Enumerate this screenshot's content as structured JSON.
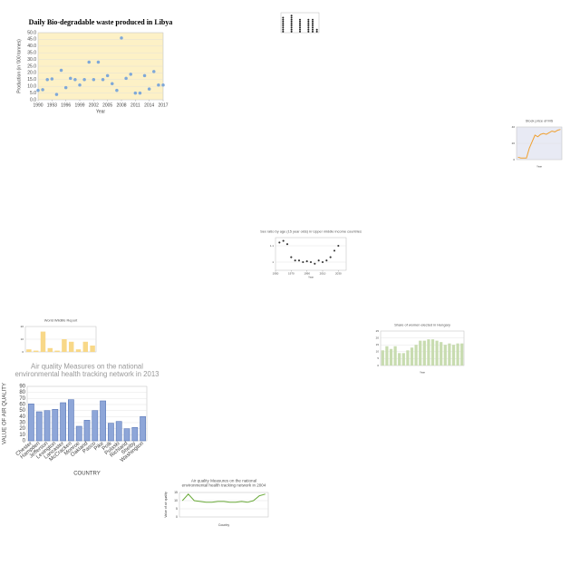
{
  "chart_data": [
    {
      "type": "scatter",
      "title": "Daily Bio-degradable waste produced in Libya",
      "x_label": "Year",
      "y_label": "Production (in '000 tonnes)",
      "x": [
        1990,
        1991,
        1992,
        1993,
        1994,
        1995,
        1996,
        1997,
        1998,
        1999,
        2000,
        2001,
        2002,
        2003,
        2004,
        2005,
        2006,
        2007,
        2008,
        2009,
        2010,
        2011,
        2012,
        2013,
        2014,
        2015,
        2016,
        2017
      ],
      "values": [
        7,
        7.5,
        15,
        15.5,
        4,
        22,
        9,
        16,
        15,
        11,
        15,
        28,
        15,
        28,
        15,
        18,
        12,
        7,
        46,
        16,
        19,
        5,
        5,
        18,
        8,
        21,
        11,
        11
      ],
      "color": "#7fa8d8",
      "background": "#fdf1c6",
      "xlim": [
        1990,
        2017
      ],
      "xticks": [
        1990,
        1993,
        1996,
        1999,
        2002,
        2005,
        2008,
        2011,
        2014,
        2017
      ],
      "ylim": [
        0,
        50
      ],
      "yticks": [
        {
          "value": 0,
          "label": "0.0"
        },
        {
          "value": 5,
          "label": "5.0"
        },
        {
          "value": 10,
          "label": "10.0"
        },
        {
          "value": 15,
          "label": "15.0"
        },
        {
          "value": 20,
          "label": "20.0"
        },
        {
          "value": 25,
          "label": "25.0"
        },
        {
          "value": 30,
          "label": "30.0"
        },
        {
          "value": 35,
          "label": "35.0"
        },
        {
          "value": 40,
          "label": "40.0"
        },
        {
          "value": 45,
          "label": "45.0"
        },
        {
          "value": 50,
          "label": "50.0"
        }
      ],
      "grid": true
    },
    {
      "type": "dot",
      "values": [
        8,
        0,
        9,
        0,
        7,
        0,
        7,
        7,
        2
      ],
      "color": "#222222",
      "ylim": [
        0,
        10
      ],
      "yticks": [],
      "grid": true
    },
    {
      "type": "line",
      "title": "Stock price of MS",
      "x_label": "Year",
      "values": [
        3,
        2,
        2,
        2,
        14,
        22,
        30,
        28,
        31,
        32,
        31,
        33,
        35,
        34,
        36,
        37
      ],
      "color": "#f0a030",
      "background": "#e8eaf4",
      "ylim": [
        0,
        40
      ],
      "yticks": [
        0,
        20,
        40
      ],
      "grid": true
    },
    {
      "type": "scatter",
      "title": "Sex ratio by age (15 year olds) in Upper middle income countries",
      "x_label": "Year",
      "x": [
        1955,
        1960,
        1965,
        1970,
        1975,
        1980,
        1985,
        1990,
        1995,
        2000,
        2005,
        2010,
        2015,
        2020,
        2025,
        2030
      ],
      "values": [
        1.12,
        1.13,
        1.11,
        1.03,
        1.01,
        1.01,
        1.0,
        1.005,
        1.0,
        0.99,
        1.01,
        1.0,
        1.01,
        1.03,
        1.07,
        1.1
      ],
      "color": "#333333",
      "xlim": [
        1950,
        2040
      ],
      "xticks": [
        1950,
        1970,
        1990,
        2010,
        2030
      ],
      "ylim": [
        0.95,
        1.15
      ],
      "yticks": [
        1,
        1.1
      ],
      "grid": true
    },
    {
      "type": "bar",
      "title": "World Wildlife Report",
      "values": [
        2,
        1,
        16,
        3,
        1,
        10,
        8,
        2,
        8,
        5
      ],
      "color": "#f8d888",
      "ylim": [
        0,
        20
      ],
      "yticks": [
        0,
        10,
        20
      ],
      "grid": true
    },
    {
      "type": "bar",
      "title": "Share of women elected in Hungary",
      "x_label": "Year",
      "values": [
        11,
        14,
        12,
        14,
        9,
        9,
        11,
        13,
        15,
        18,
        18,
        19,
        19,
        18,
        17,
        15,
        16,
        15,
        16,
        16
      ],
      "color": "#c8dcb0",
      "ylim": [
        0,
        25
      ],
      "yticks": [
        0,
        5,
        10,
        15,
        20,
        25
      ],
      "grid": true
    },
    {
      "type": "bar",
      "title": "Air quality Measures on the national environmental health tracking network in 2013",
      "x_label": "COUNTRY",
      "y_label": "VALUE OF AIR QUALITY",
      "categories": [
        "Chester",
        "Hampden",
        "Jefferson",
        "Lexington",
        "Lancaster",
        "McCracken",
        "Monroe",
        "Oakland",
        "Pasco",
        "Pike",
        "Polk",
        "Pulaski",
        "Richland",
        "Shelby",
        "Washington"
      ],
      "values": [
        61,
        48,
        50,
        52,
        63,
        68,
        24,
        34,
        50,
        66,
        29,
        32,
        20,
        22,
        40
      ],
      "color": "#8ea6d8",
      "ylim": [
        0,
        90
      ],
      "yticks": [
        0,
        10,
        20,
        30,
        40,
        50,
        60,
        70,
        80,
        90
      ],
      "grid": true
    },
    {
      "type": "line",
      "title": "Air quality Measures on the national environmental health tracking network in 2004",
      "x_label": "Country",
      "y_label": "Value of air quality",
      "values": [
        10,
        14,
        10,
        9.5,
        9,
        9,
        9.5,
        9.5,
        9,
        9,
        9.5,
        9,
        10,
        13,
        14
      ],
      "color": "#6aaa3a",
      "ylim": [
        0,
        15
      ],
      "yticks": [
        0,
        5,
        10,
        15
      ],
      "grid": true
    }
  ]
}
